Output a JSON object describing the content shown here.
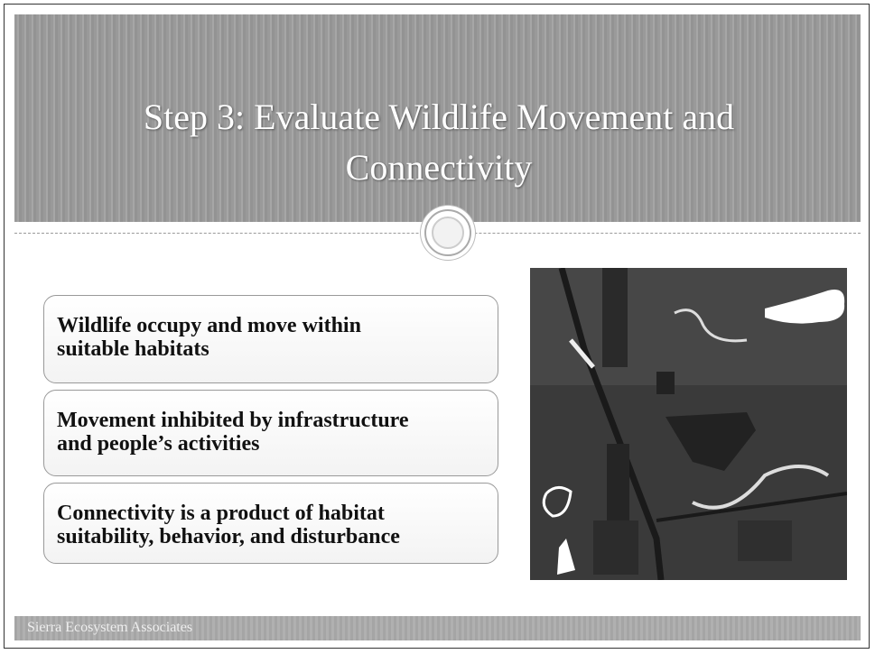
{
  "slide": {
    "title": "Step 3: Evaluate Wildlife Movement and Connectivity",
    "bullets": [
      [
        "Wildlife occupy and move within",
        "suitable habitats"
      ],
      [
        "Movement inhibited by infrastructure",
        "and people’s activities"
      ],
      [
        "Connectivity is a product of habitat",
        "suitability, behavior, and disturbance"
      ]
    ],
    "footer": "Sierra Ecosystem Associates"
  }
}
